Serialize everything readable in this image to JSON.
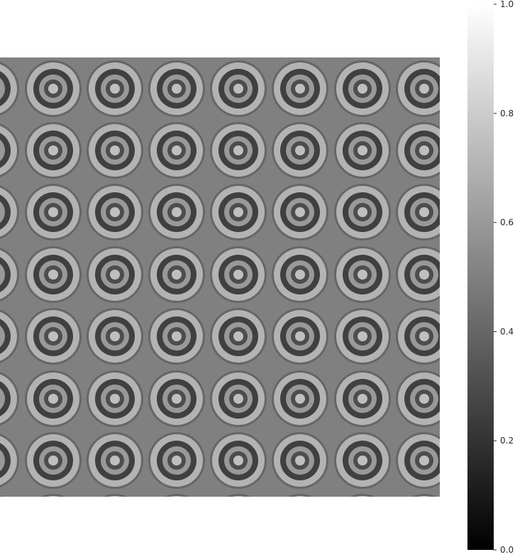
{
  "chart_data": {
    "type": "heatmap",
    "title": "",
    "xlabel": "",
    "ylabel": "",
    "colormap": "gray",
    "pattern": "concentric rings tiled in a grid",
    "colorbar": {
      "vmin": 0.0,
      "vmax": 1.0,
      "ticks": [
        0.0,
        0.2,
        0.4,
        0.6,
        0.8,
        1.0
      ],
      "tick_labels": [
        "0.0",
        "0.2",
        "0.4",
        "0.6",
        "0.8",
        "1.0"
      ],
      "placement": "right"
    },
    "tile_values": {
      "background": 0.5,
      "rings_outer_to_inner": [
        0.4,
        0.7,
        0.25,
        0.6,
        0.3,
        0.75
      ]
    },
    "grid": false
  }
}
